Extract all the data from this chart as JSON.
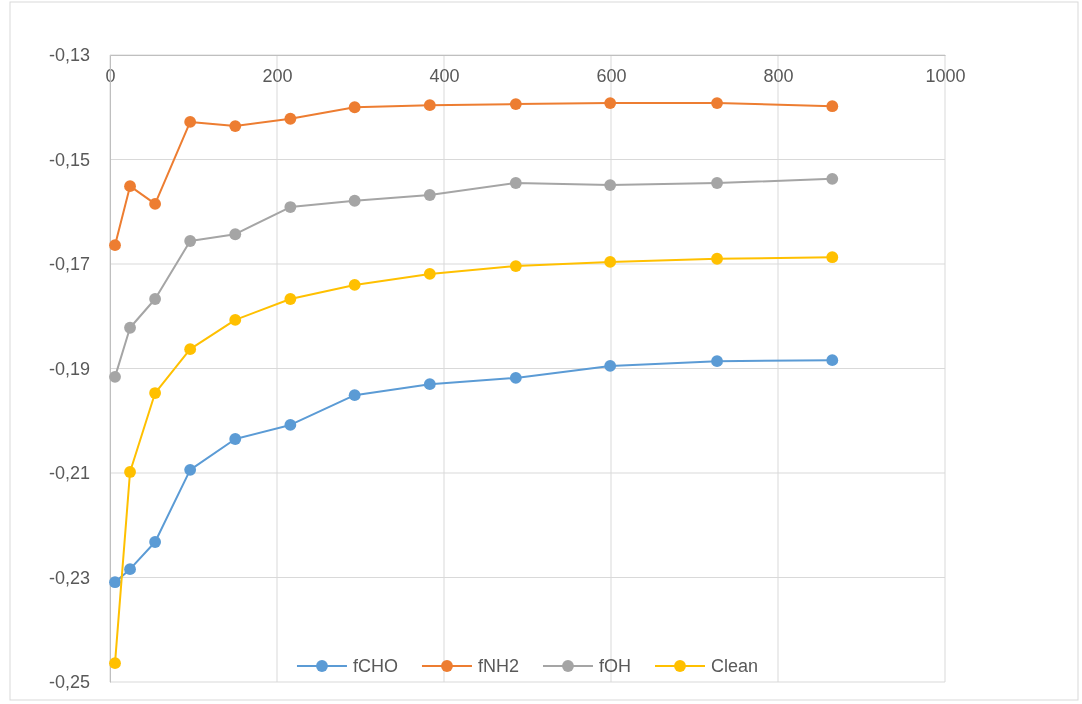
{
  "chart_data": {
    "type": "line",
    "x": [
      6,
      24,
      54,
      96,
      150,
      216,
      293,
      383,
      486,
      599,
      727,
      865
    ],
    "series": [
      {
        "name": "fCHO",
        "color": "#5b9bd5",
        "values": [
          -0.2309,
          -0.2284,
          -0.2232,
          -0.2094,
          -0.2035,
          -0.2008,
          -0.1951,
          -0.193,
          -0.1918,
          -0.1895,
          -0.1886,
          -0.1884
        ]
      },
      {
        "name": "fNH2",
        "color": "#ed7d31",
        "values": [
          -0.1664,
          -0.1551,
          -0.1585,
          -0.1428,
          -0.1436,
          -0.1422,
          -0.14,
          -0.1396,
          -0.1394,
          -0.1392,
          -0.1392,
          -0.1398
        ]
      },
      {
        "name": "fOH",
        "color": "#a5a5a5",
        "values": [
          -0.1916,
          -0.1822,
          -0.1767,
          -0.1656,
          -0.1643,
          -0.1591,
          -0.1579,
          -0.1568,
          -0.1545,
          -0.1549,
          -0.1545,
          -0.1537
        ]
      },
      {
        "name": "Clean",
        "color": "#ffc000",
        "values": [
          -0.2464,
          -0.2098,
          -0.1947,
          -0.1863,
          -0.1807,
          -0.1767,
          -0.174,
          -0.1719,
          -0.1704,
          -0.1696,
          -0.169,
          -0.1687
        ]
      }
    ],
    "xlim": [
      0,
      1000
    ],
    "xticks": [
      0,
      200,
      400,
      600,
      800,
      1000
    ],
    "ylim": [
      -0.25,
      -0.13
    ],
    "yticks": [
      {
        "value": -0.25,
        "label": "-0,25"
      },
      {
        "value": -0.23,
        "label": "-0,23"
      },
      {
        "value": -0.21,
        "label": "-0,21"
      },
      {
        "value": -0.19,
        "label": "-0,19"
      },
      {
        "value": -0.17,
        "label": "-0,17"
      },
      {
        "value": -0.15,
        "label": "-0,15"
      },
      {
        "value": -0.13,
        "label": "-0,13"
      }
    ],
    "grid": true,
    "legend": "bottom",
    "marker": "circle",
    "line_style": "solid"
  }
}
